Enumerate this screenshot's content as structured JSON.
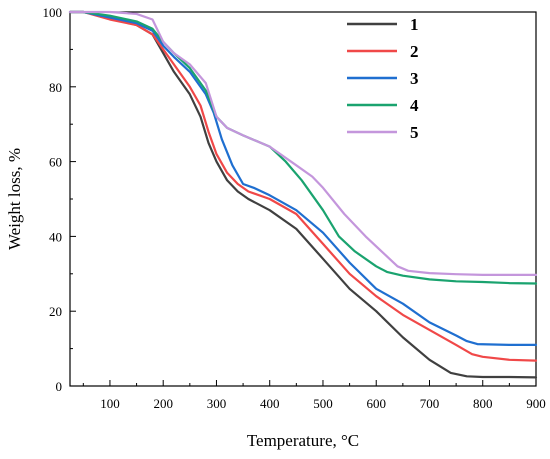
{
  "chart_data": {
    "type": "line",
    "title": "",
    "xlabel": "Temperature, °C",
    "ylabel": "Weight loss, %",
    "xlim": [
      25,
      900
    ],
    "ylim": [
      0,
      100
    ],
    "xticks": [
      100,
      200,
      300,
      400,
      500,
      600,
      700,
      800,
      900
    ],
    "yticks": [
      0,
      20,
      40,
      60,
      80,
      100
    ],
    "grid": false,
    "legend_position": "top-right",
    "series": [
      {
        "name": "1",
        "color": "#404040",
        "x": [
          25,
          50,
          100,
          150,
          180,
          200,
          220,
          250,
          270,
          285,
          300,
          320,
          340,
          360,
          400,
          450,
          500,
          550,
          600,
          650,
          700,
          740,
          770,
          800,
          850,
          900
        ],
        "y": [
          100,
          100,
          98.5,
          96.5,
          94,
          89,
          84,
          78,
          72,
          65,
          60,
          55,
          52,
          50,
          47,
          42,
          34,
          26,
          20,
          13,
          7,
          3.5,
          2.6,
          2.4,
          2.4,
          2.3
        ]
      },
      {
        "name": "2",
        "color": "#f04848",
        "x": [
          25,
          50,
          100,
          150,
          180,
          200,
          220,
          250,
          270,
          285,
          300,
          320,
          340,
          360,
          400,
          450,
          500,
          550,
          600,
          650,
          700,
          750,
          780,
          800,
          850,
          900
        ],
        "y": [
          100,
          100,
          98,
          96.5,
          94,
          90,
          86,
          80,
          75,
          68,
          62,
          57,
          54,
          52,
          50,
          46,
          38,
          30,
          24,
          19,
          15,
          11,
          8.5,
          7.8,
          7,
          6.8
        ]
      },
      {
        "name": "3",
        "color": "#1f6fd0",
        "x": [
          25,
          50,
          100,
          150,
          180,
          200,
          220,
          250,
          280,
          295,
          310,
          330,
          350,
          370,
          400,
          450,
          500,
          550,
          600,
          650,
          700,
          750,
          770,
          790,
          850,
          900
        ],
        "y": [
          100,
          100,
          98.5,
          97,
          95,
          91,
          88,
          84,
          78,
          73,
          66,
          59,
          54,
          53,
          51,
          47,
          41,
          33,
          26,
          22,
          17,
          13.5,
          12,
          11.2,
          11,
          11
        ]
      },
      {
        "name": "4",
        "color": "#1aa36f",
        "x": [
          25,
          50,
          100,
          150,
          180,
          200,
          220,
          250,
          280,
          300,
          320,
          350,
          400,
          430,
          460,
          500,
          530,
          560,
          600,
          620,
          650,
          700,
          750,
          800,
          850,
          900
        ],
        "y": [
          100,
          100,
          99,
          97.5,
          95.5,
          92,
          89,
          85,
          79,
          72,
          69,
          67,
          64,
          60,
          55,
          47,
          40,
          36,
          32,
          30.5,
          29.5,
          28.5,
          28,
          27.8,
          27.5,
          27.4
        ]
      },
      {
        "name": "5",
        "color": "#c496dc",
        "x": [
          25,
          50,
          100,
          150,
          180,
          200,
          220,
          250,
          280,
          300,
          320,
          350,
          400,
          450,
          480,
          500,
          540,
          580,
          610,
          640,
          660,
          700,
          750,
          800,
          850,
          900
        ],
        "y": [
          100,
          100,
          100,
          99.5,
          98,
          92,
          89,
          86,
          81,
          72,
          69,
          67,
          64,
          59,
          56,
          53,
          46,
          40,
          36,
          32,
          30.8,
          30.2,
          29.9,
          29.7,
          29.7,
          29.7
        ]
      }
    ]
  }
}
